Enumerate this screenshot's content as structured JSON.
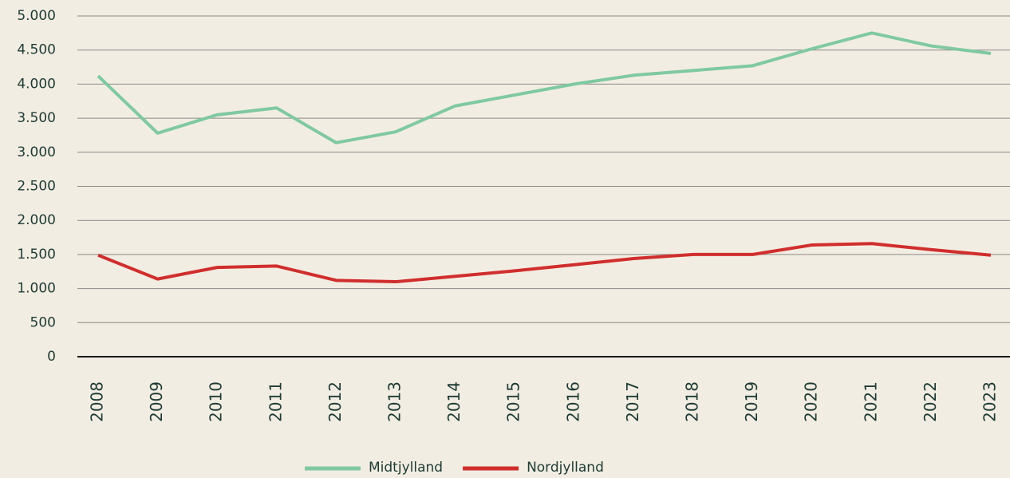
{
  "chart_data": {
    "type": "line",
    "categories": [
      "2008",
      "2009",
      "2010",
      "2011",
      "2012",
      "2013",
      "2014",
      "2015",
      "2016",
      "2017",
      "2018",
      "2019",
      "2020",
      "2021",
      "2022",
      "2023"
    ],
    "series": [
      {
        "name": "Midtjylland",
        "color": "#7fc9a1",
        "values": [
          4120,
          3280,
          3550,
          3650,
          3140,
          3300,
          3680,
          3840,
          4000,
          4130,
          4200,
          4270,
          4520,
          4750,
          4560,
          4450
        ]
      },
      {
        "name": "Nordjylland",
        "color": "#d02e2d",
        "values": [
          1490,
          1140,
          1310,
          1330,
          1120,
          1100,
          1180,
          1260,
          1350,
          1440,
          1500,
          1500,
          1640,
          1660,
          1570,
          1490
        ]
      }
    ],
    "ylim": [
      0,
      5000
    ],
    "yticks": [
      0,
      500,
      {
        "value": 1000,
        "label": "1.000"
      },
      {
        "value": 1500,
        "label": "1.500"
      },
      {
        "value": 2000,
        "label": "2.000"
      },
      {
        "value": 2500,
        "label": "2.500"
      },
      {
        "value": 3000,
        "label": "3.000"
      },
      {
        "value": 3500,
        "label": "3.500"
      },
      {
        "value": 4000,
        "label": "4.000"
      },
      {
        "value": 4500,
        "label": "4.500"
      },
      {
        "value": 5000,
        "label": "5.000"
      }
    ],
    "grid": true,
    "legend": "bottom"
  }
}
